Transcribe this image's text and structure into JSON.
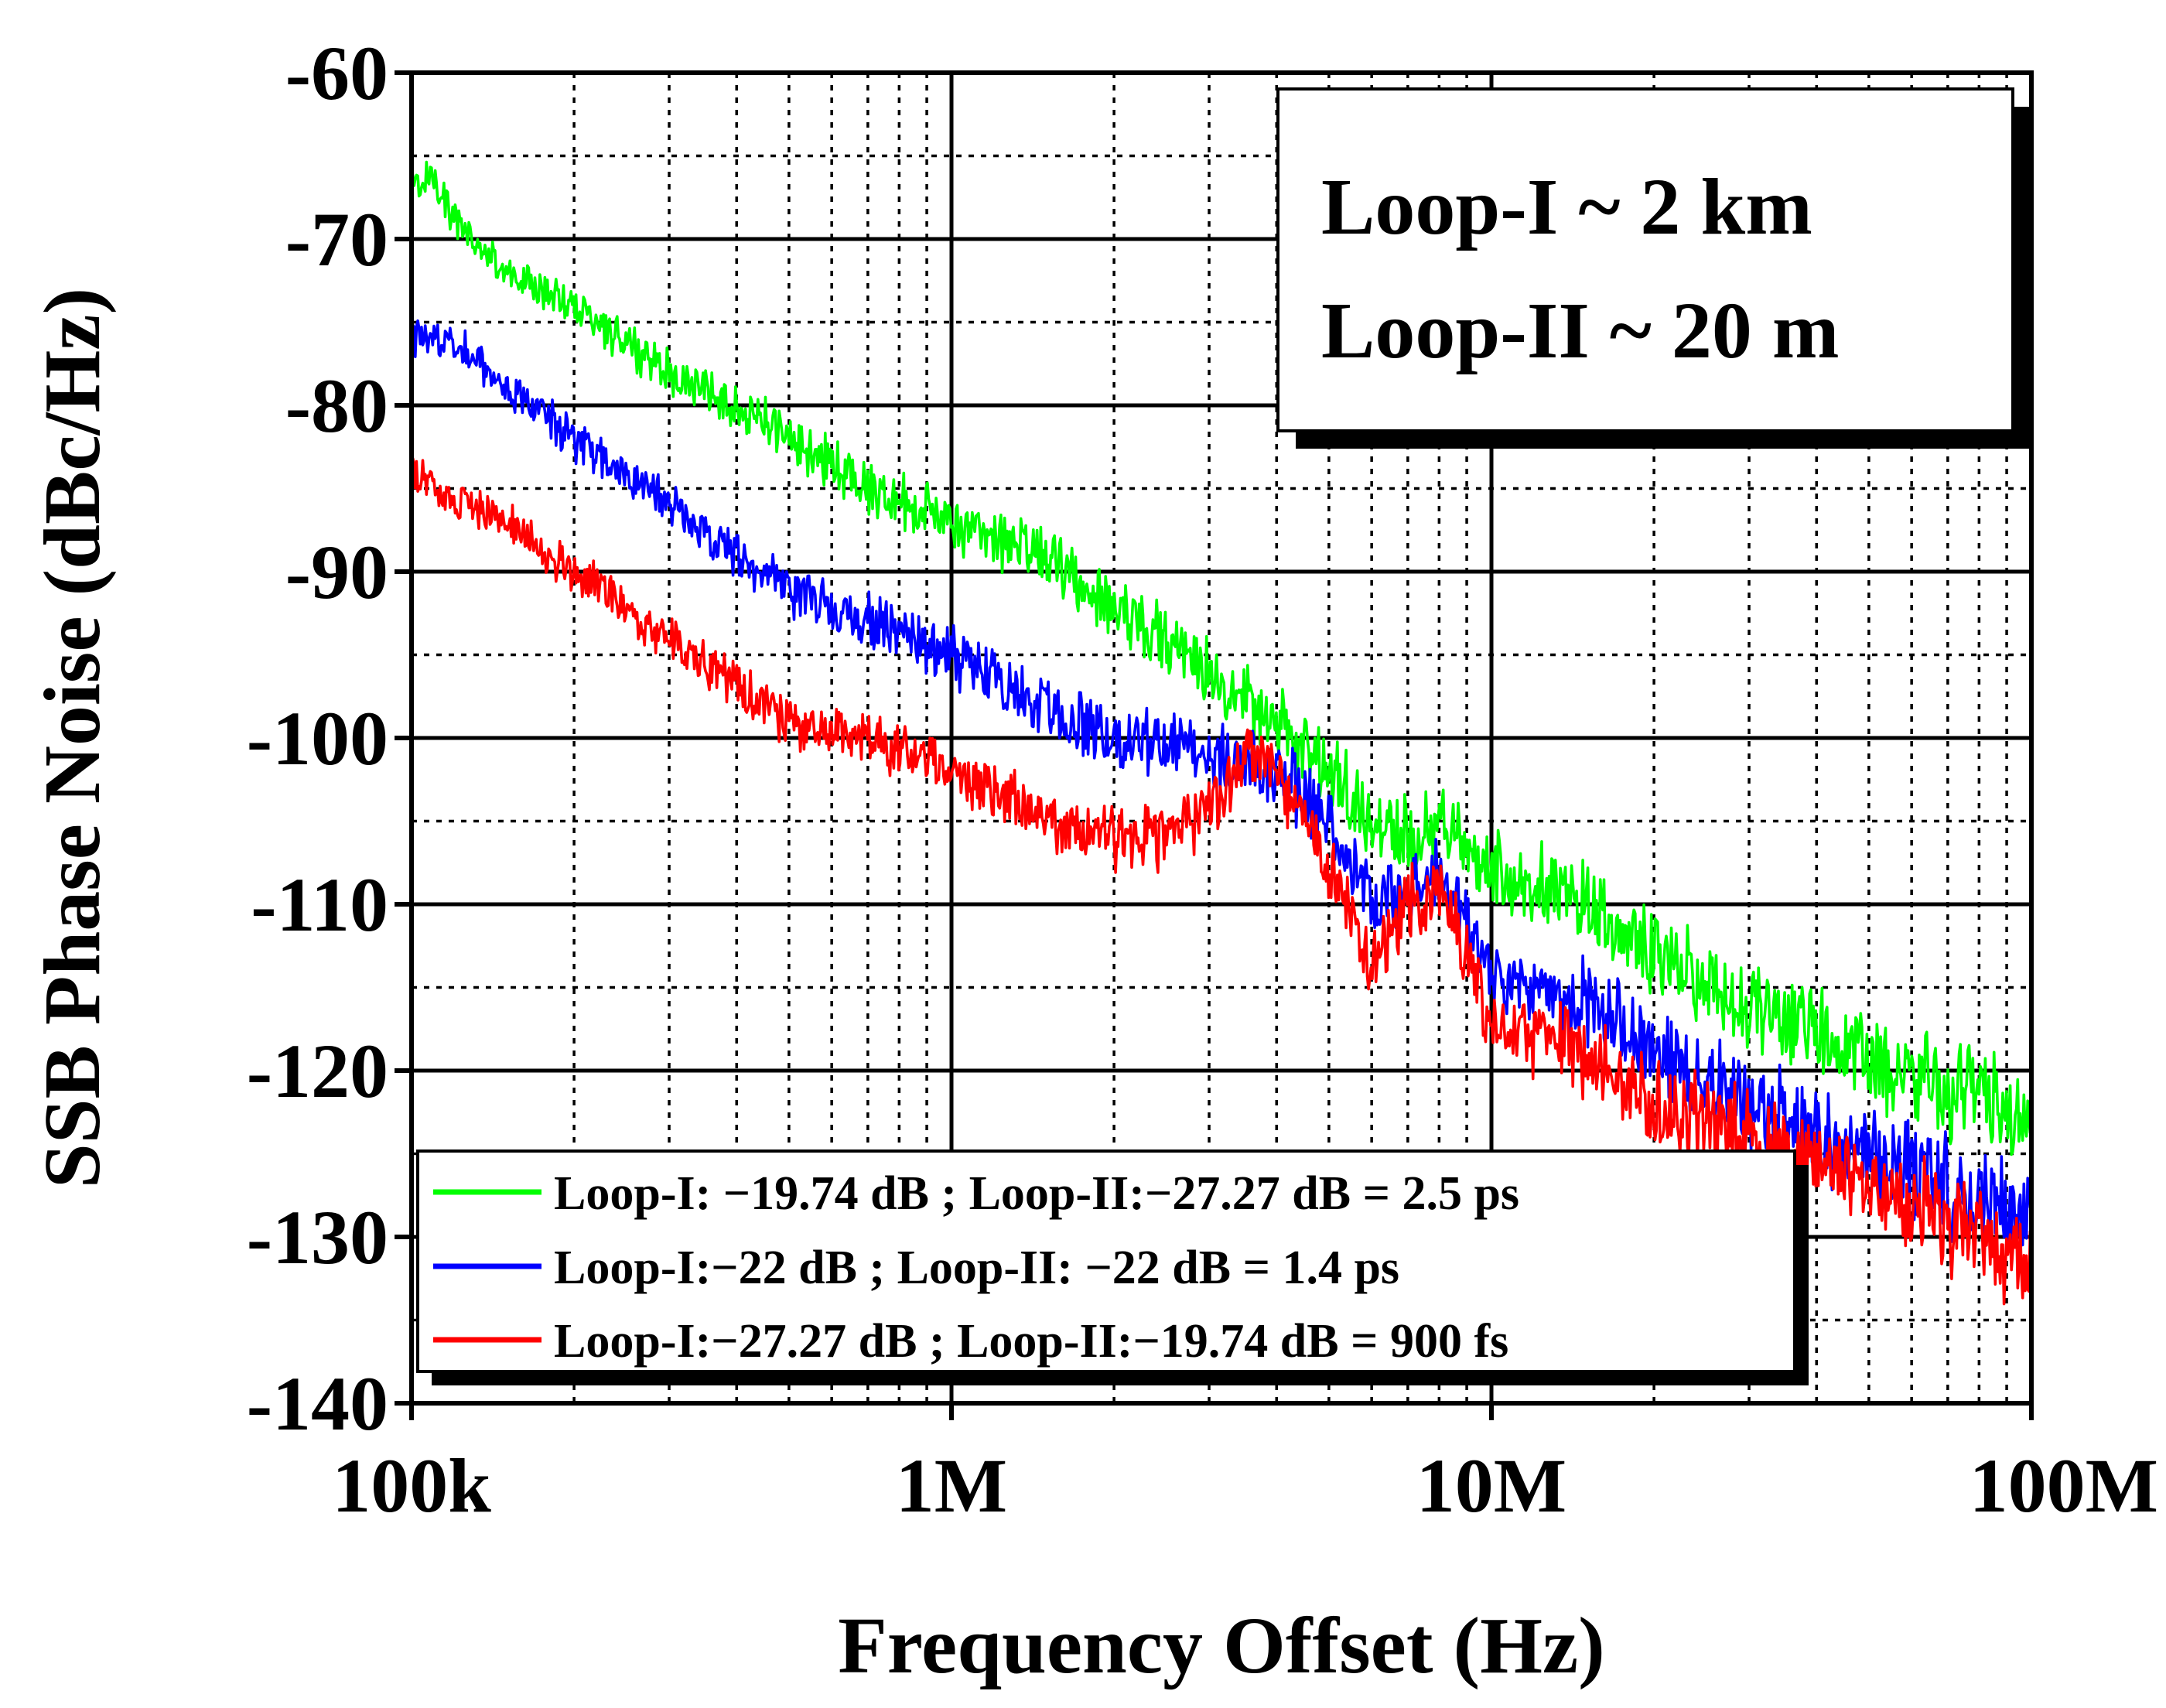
{
  "chart_data": {
    "type": "line",
    "title": "",
    "xlabel": "Frequency Offset (Hz)",
    "ylabel": "SSB Phase Noise (dBc/Hz)",
    "xscale": "log",
    "xlim": [
      100000,
      100000000
    ],
    "ylim": [
      -140,
      -60
    ],
    "x_ticks": [
      100000,
      1000000,
      10000000,
      100000000
    ],
    "x_tick_labels": [
      "100k",
      "1M",
      "10M",
      "100M"
    ],
    "y_ticks": [
      -60,
      -70,
      -80,
      -90,
      -100,
      -110,
      -120,
      -130,
      -140
    ],
    "y_tick_labels": [
      "-60",
      "-70",
      "-80",
      "-90",
      "-100",
      "-110",
      "-120",
      "-130",
      "-140"
    ],
    "grid": true,
    "annotation_lines": [
      "Loop-I ~ 2 km",
      "Loop-II ~ 20 m"
    ],
    "annotation_position": "top-right",
    "legend_position": "bottom-left",
    "series": [
      {
        "name": "Loop-I: −19.74 dB ; Loop-II:−27.27 dB = 2.5 ps",
        "color": "#00ff00",
        "x": [
          100000,
          110000,
          120000,
          150000,
          200000,
          300000,
          400000,
          500000,
          700000,
          1000000,
          1500000,
          2000000,
          3000000,
          4000000,
          5000000,
          6000000,
          7000000,
          8000000,
          10000000,
          15000000,
          20000000,
          30000000,
          50000000,
          70000000,
          100000000
        ],
        "y": [
          -67,
          -66,
          -69,
          -72,
          -74,
          -78,
          -80,
          -82,
          -85,
          -87,
          -89,
          -92,
          -96,
          -99,
          -102,
          -105,
          -106,
          -105,
          -108,
          -110,
          -113,
          -116,
          -119,
          -121,
          -123
        ]
      },
      {
        "name": "Loop-I:−22 dB ; Loop-II: −22 dB = 1.4 ps",
        "color": "#0000ff",
        "x": [
          100000,
          120000,
          150000,
          200000,
          300000,
          400000,
          500000,
          700000,
          1000000,
          1500000,
          2000000,
          3000000,
          4000000,
          5000000,
          6000000,
          7000000,
          8000000,
          10000000,
          15000000,
          20000000,
          30000000,
          50000000,
          70000000,
          100000000
        ],
        "y": [
          -76,
          -76,
          -79,
          -82,
          -86,
          -89,
          -91,
          -93,
          -95,
          -98,
          -100,
          -101,
          -102,
          -105,
          -110,
          -109,
          -108,
          -114,
          -116,
          -119,
          -122,
          -125,
          -127,
          -129
        ]
      },
      {
        "name": "Loop-I:−27.27 dB ; Loop-II:−19.74 dB = 900 fs",
        "color": "#ff0000",
        "x": [
          100000,
          120000,
          150000,
          200000,
          300000,
          400000,
          500000,
          700000,
          1000000,
          1500000,
          2000000,
          2500000,
          3000000,
          3500000,
          4000000,
          5000000,
          6000000,
          6500000,
          7000000,
          8000000,
          10000000,
          15000000,
          20000000,
          30000000,
          50000000,
          70000000,
          100000000
        ],
        "y": [
          -84,
          -86,
          -87,
          -90,
          -94,
          -97,
          -99,
          -100,
          -102,
          -105,
          -106,
          -106,
          -104,
          -101,
          -102,
          -108,
          -113,
          -112,
          -110,
          -109,
          -117,
          -119,
          -122,
          -124,
          -127,
          -129,
          -132
        ]
      }
    ]
  }
}
